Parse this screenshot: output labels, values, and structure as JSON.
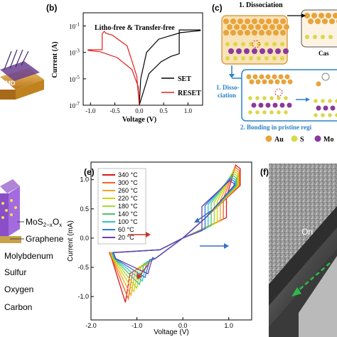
{
  "panel_labels": {
    "b": "(b)",
    "c": "(c)",
    "e": "(e)",
    "f": "(f)"
  },
  "panel_a": {
    "layer_label": "TMD"
  },
  "panel_b": {
    "title": "Litho-free & Transfer-free",
    "ylabel": "Current (A)",
    "xlabel": "Voltage (V)",
    "yticks": [
      "10",
      "10",
      "10",
      "10",
      "10"
    ],
    "yexps": [
      "-1",
      "-3",
      "-5",
      "-7"
    ],
    "xticks": [
      "-1.0",
      "-0.5",
      "0.0",
      "0.5",
      "1.0"
    ],
    "legend": [
      "SET",
      "RESET"
    ],
    "colors": {
      "SET": "#000000",
      "RESET": "#e0201b"
    }
  },
  "panel_c": {
    "step1": "1. Dissociation",
    "case_label": "Cas",
    "side_label_1": "1. Disso-",
    "side_label_2": "ciation",
    "step2": "2. Bonding in pristine regi",
    "legend": [
      "Au",
      "S",
      "Mo"
    ],
    "colors": {
      "Au": "#e8a33a",
      "S": "#d9d84a",
      "Mo": "#8a3a9a",
      "frame": "#2a82c4"
    }
  },
  "panel_d": {
    "mos2_label": "MoS",
    "mos2_sub1": "2−x",
    "mos2_mid": "O",
    "mos2_sub2": "x",
    "graphene_label": "Graphene",
    "legend": [
      "Molybdenum",
      "Sulfur",
      "Oxygen",
      "Carbon"
    ]
  },
  "panel_e": {
    "ylabel": "Current (mA)",
    "xlabel": "Voltage (V)",
    "xticks": [
      "-2.0",
      "-1.0",
      "0.0",
      "1.0"
    ],
    "yticks": [
      "1.0",
      "0.5",
      "0.0",
      "-0.5",
      "-1.0"
    ],
    "legend": [
      {
        "label": "340 °C",
        "color": "#d7191c"
      },
      {
        "label": "300 °C",
        "color": "#f26522"
      },
      {
        "label": "260 °C",
        "color": "#f5a623"
      },
      {
        "label": "220 °C",
        "color": "#d4d400"
      },
      {
        "label": "180 °C",
        "color": "#a6d936"
      },
      {
        "label": "140 °C",
        "color": "#4dc36a"
      },
      {
        "label": "100 °C",
        "color": "#2ec4c4"
      },
      {
        "label": "60 °C",
        "color": "#2b7bd6"
      },
      {
        "label": "20 °C",
        "color": "#6a3fb5"
      }
    ]
  },
  "panel_f": {
    "on_label": "On"
  }
}
